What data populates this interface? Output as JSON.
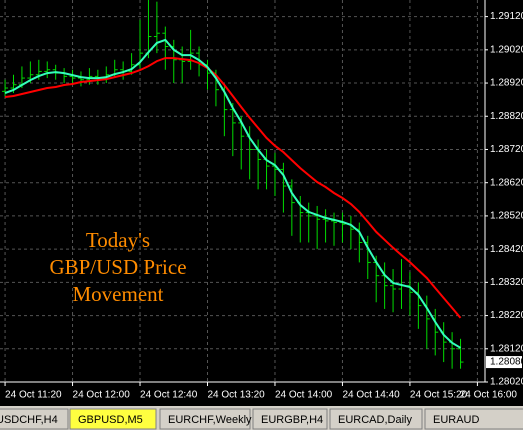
{
  "chart_data": {
    "type": "ohlc",
    "bar_color": "#00dd00",
    "open": [
      1.28895,
      1.28905,
      1.28915,
      1.28935,
      1.28945,
      1.28955,
      1.2896,
      1.2895,
      1.2894,
      1.28935,
      1.2893,
      1.2894,
      1.28935,
      1.28945,
      1.2896,
      1.28955,
      1.28975,
      1.2901,
      1.2906,
      1.2907,
      1.2903,
      1.2899,
      1.28985,
      1.2901,
      1.28975,
      1.2895,
      1.289,
      1.2884,
      1.288,
      1.2876,
      1.2872,
      1.2869,
      1.2867,
      1.2866,
      1.2861,
      1.2856,
      1.2853,
      1.2852,
      1.2851,
      1.28505,
      1.285,
      1.28495,
      1.2848,
      1.2844,
      1.2838,
      1.2834,
      1.2831,
      1.283,
      1.2831,
      1.2829,
      1.2825,
      1.2821,
      1.2817,
      1.2814,
      1.2812
    ],
    "high": [
      1.2893,
      1.28945,
      1.2897,
      1.28985,
      1.2899,
      1.28985,
      1.28975,
      1.28965,
      1.2896,
      1.28955,
      1.28965,
      1.2896,
      1.2897,
      1.2899,
      1.28985,
      1.2901,
      1.2911,
      1.2917,
      1.29165,
      1.2909,
      1.2905,
      1.2903,
      1.2908,
      1.2903,
      1.2899,
      1.2896,
      1.2891,
      1.2886,
      1.2882,
      1.2879,
      1.2875,
      1.2872,
      1.2871,
      1.2868,
      1.2863,
      1.2858,
      1.2856,
      1.2855,
      1.2854,
      1.2853,
      1.2853,
      1.2852,
      1.285,
      1.2846,
      1.284,
      1.2838,
      1.2836,
      1.2839,
      1.2835,
      1.2832,
      1.2828,
      1.2824,
      1.282,
      1.2817,
      1.2815
    ],
    "low": [
      1.2888,
      1.2889,
      1.28905,
      1.2892,
      1.2893,
      1.28935,
      1.2893,
      1.2892,
      1.28915,
      1.2891,
      1.28915,
      1.28915,
      1.2892,
      1.28935,
      1.2893,
      1.28945,
      1.28965,
      1.28995,
      1.2901,
      1.2896,
      1.2892,
      1.2892,
      1.2896,
      1.2894,
      1.289,
      1.2885,
      1.2876,
      1.287,
      1.2866,
      1.2863,
      1.286,
      1.286,
      1.2858,
      1.2853,
      1.2846,
      1.2844,
      1.2844,
      1.2842,
      1.2844,
      1.2843,
      1.2844,
      1.2842,
      1.2838,
      1.2833,
      1.2826,
      1.2824,
      1.2823,
      1.2824,
      1.2822,
      1.2818,
      1.2812,
      1.281,
      1.2808,
      1.2806,
      1.2806
    ],
    "close": [
      1.28905,
      1.28915,
      1.28935,
      1.28945,
      1.28955,
      1.2896,
      1.2895,
      1.2894,
      1.28935,
      1.2893,
      1.2894,
      1.28935,
      1.28945,
      1.2896,
      1.28955,
      1.28975,
      1.2901,
      1.2906,
      1.2907,
      1.2903,
      1.2899,
      1.28985,
      1.2901,
      1.28975,
      1.2895,
      1.289,
      1.2884,
      1.288,
      1.2876,
      1.2872,
      1.2869,
      1.2867,
      1.2866,
      1.2861,
      1.2856,
      1.2853,
      1.2852,
      1.2851,
      1.28505,
      1.285,
      1.28495,
      1.2848,
      1.2844,
      1.2838,
      1.2834,
      1.2831,
      1.283,
      1.2831,
      1.2829,
      1.2825,
      1.2821,
      1.2817,
      1.2814,
      1.2812,
      1.2808
    ],
    "series": [
      {
        "color": "#ff0000",
        "values": [
          1.28878,
          1.28881,
          1.28887,
          1.28893,
          1.28899,
          1.28905,
          1.28908,
          1.28914,
          1.28917,
          1.28923,
          1.28926,
          1.28929,
          1.28932,
          1.28938,
          1.28944,
          1.2895,
          1.28959,
          1.28971,
          1.28986,
          1.28995,
          1.28995,
          1.28992,
          1.28989,
          1.2898,
          1.28965,
          1.28944,
          1.28914,
          1.28881,
          1.28848,
          1.28815,
          1.28785,
          1.28755,
          1.28731,
          1.28712,
          1.28688,
          1.28664,
          1.28643,
          1.28622,
          1.28607,
          1.28589,
          1.28574,
          1.28556,
          1.28532,
          1.28502,
          1.28472,
          1.28448,
          1.28424,
          1.28402,
          1.28381,
          1.28357,
          1.28333,
          1.28303,
          1.28273,
          1.28243,
          1.28213
        ]
      },
      {
        "color": "#33ffbb",
        "values": [
          1.2889,
          1.28899,
          1.28914,
          1.28929,
          1.28941,
          1.2895,
          1.28953,
          1.2895,
          1.28944,
          1.28938,
          1.28935,
          1.28935,
          1.28938,
          1.28947,
          1.28953,
          1.28962,
          1.28983,
          1.29013,
          1.29041,
          1.2905,
          1.2902,
          1.29004,
          1.29004,
          1.28989,
          1.28968,
          1.28935,
          1.28893,
          1.28845,
          1.28803,
          1.28755,
          1.28719,
          1.28688,
          1.28673,
          1.28643,
          1.28589,
          1.28553,
          1.28532,
          1.28523,
          1.28514,
          1.28508,
          1.28502,
          1.28493,
          1.28472,
          1.28424,
          1.28381,
          1.28342,
          1.28318,
          1.28312,
          1.28306,
          1.28282,
          1.28243,
          1.28201,
          1.28162,
          1.28138,
          1.28123
        ]
      }
    ],
    "xlim": [
      -0.6,
      56.9
    ],
    "xticks": [
      {
        "value": 0,
        "label": "24 Oct 11:20"
      },
      {
        "value": 8,
        "label": "24 Oct 12:00"
      },
      {
        "value": 16,
        "label": "24 Oct 12:40"
      },
      {
        "value": 24,
        "label": "24 Oct 13:20"
      },
      {
        "value": 32,
        "label": "24 Oct 14:00"
      },
      {
        "value": 40,
        "label": "24 Oct 14:40"
      },
      {
        "value": 48,
        "label": "24 Oct 15:20"
      },
      {
        "value": 56,
        "label": "24 Oct 16:00"
      }
    ],
    "ylim": [
      1.2802,
      1.2917
    ],
    "yticks": [
      {
        "value": 1.2912,
        "label": "1.29120"
      },
      {
        "value": 1.2902,
        "label": "1.29020"
      },
      {
        "value": 1.2892,
        "label": "1.28920"
      },
      {
        "value": 1.2882,
        "label": "1.28820"
      },
      {
        "value": 1.2872,
        "label": "1.28720"
      },
      {
        "value": 1.2862,
        "label": "1.28620"
      },
      {
        "value": 1.2852,
        "label": "1.28520"
      },
      {
        "value": 1.2842,
        "label": "1.28420"
      },
      {
        "value": 1.2832,
        "label": "1.28320"
      },
      {
        "value": 1.2822,
        "label": "1.28220"
      },
      {
        "value": 1.2812,
        "label": "1.28120"
      },
      {
        "value": 1.2802,
        "label": "1.28020"
      }
    ],
    "current_price": {
      "value": 1.2808,
      "label": "1.28080"
    },
    "grid": true,
    "annotation": [
      "Today's",
      "GBP/USD Price",
      "Movement"
    ],
    "annotation_color": "#ff8c00",
    "tabs": [
      "USDCHF,H4",
      "GBPUSD,M5",
      "EURCHF,Weekly",
      "EURGBP,H4",
      "EURCAD,Daily",
      "EURAUD"
    ],
    "active_tab": 1
  }
}
